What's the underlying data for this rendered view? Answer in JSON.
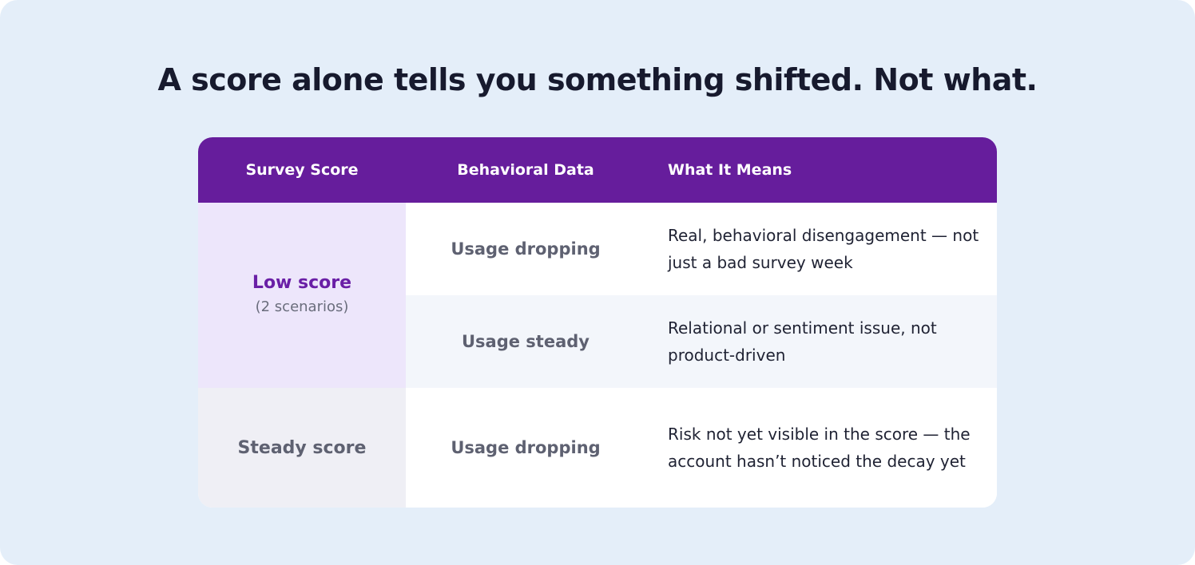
{
  "page": {
    "title": "A score alone tells you something shifted. Not what."
  },
  "table": {
    "headers": {
      "survey_score": "Survey Score",
      "behavioral_data": "Behavioral Data",
      "what_it_means": "What It Means"
    },
    "groups": [
      {
        "score_label": "Low score",
        "score_note": "(2 scenarios)",
        "rows": [
          {
            "behavior": "Usage dropping",
            "meaning": "Real, behavioral disengagement — not just a bad survey week"
          },
          {
            "behavior": "Usage steady",
            "meaning": "Relational or sentiment issue, not product-driven"
          }
        ]
      },
      {
        "score_label": "Steady score",
        "rows": [
          {
            "behavior": "Usage dropping",
            "meaning": "Risk not yet visible in the score — the account hasn’t noticed the decay yet"
          }
        ]
      }
    ]
  },
  "colors": {
    "background": "#e4eef9",
    "header": "#661d9c",
    "low_score_cell": "#ede6fb",
    "low_score_text": "#6a1fa6",
    "steady_score_cell": "#efeff5",
    "alt_row": "#f3f6fb"
  }
}
